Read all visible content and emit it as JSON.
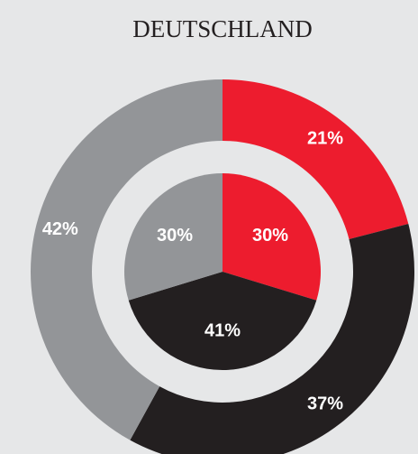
{
  "chart_data": {
    "type": "pie",
    "title": "DEUTSCHLAND",
    "series": [
      {
        "colors": [
          "#ed1c2e",
          "#231f20",
          "#939598"
        ],
        "values": [
          30,
          41,
          30
        ],
        "value_labels": [
          "30%",
          "41%",
          "30%"
        ]
      },
      {
        "colors": [
          "#ed1c2e",
          "#231f20",
          "#939598"
        ],
        "values": [
          21,
          37,
          42
        ],
        "value_labels": [
          "21%",
          "37%",
          "42%"
        ]
      }
    ]
  }
}
